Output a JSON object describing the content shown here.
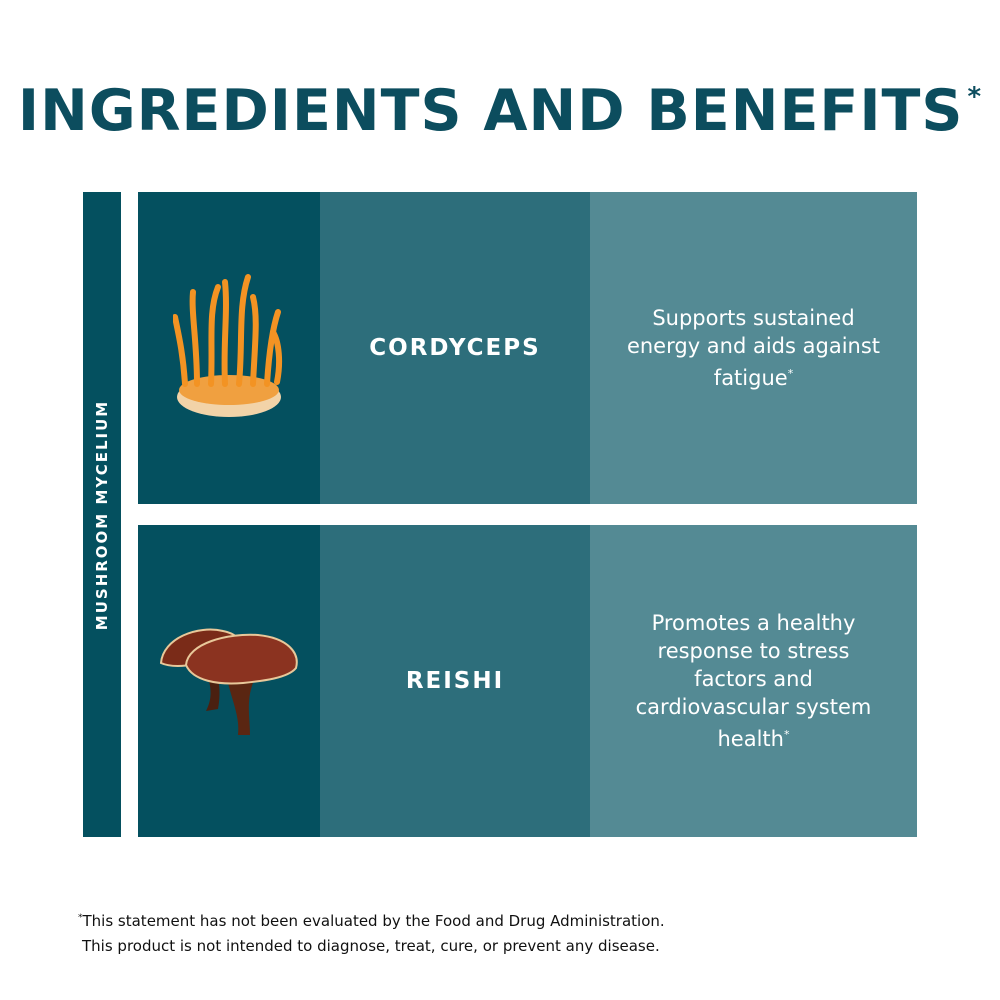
{
  "title": "INGREDIENTS AND BENEFITS",
  "title_mark": "*",
  "side_label": "MUSHROOM MYCELIUM",
  "rows": [
    {
      "name": "CORDYCEPS",
      "image": "cordyceps-mushroom",
      "benefit": "Supports sustained energy and aids against fatigue",
      "mark": "*"
    },
    {
      "name": "REISHI",
      "image": "reishi-mushroom",
      "benefit": "Promotes a healthy response to stress factors and cardiovascular system health",
      "mark": "*"
    }
  ],
  "footnote": {
    "mark": "*",
    "line1": "This statement has not been evaluated by the Food and Drug Administration.",
    "line2": "This product is not intended to diagnose, treat, cure, or prevent any disease."
  },
  "colors": {
    "title": "#0c4d5e",
    "dark": "#04505f",
    "mid": "#2d6e7b",
    "light": "#548a94"
  }
}
